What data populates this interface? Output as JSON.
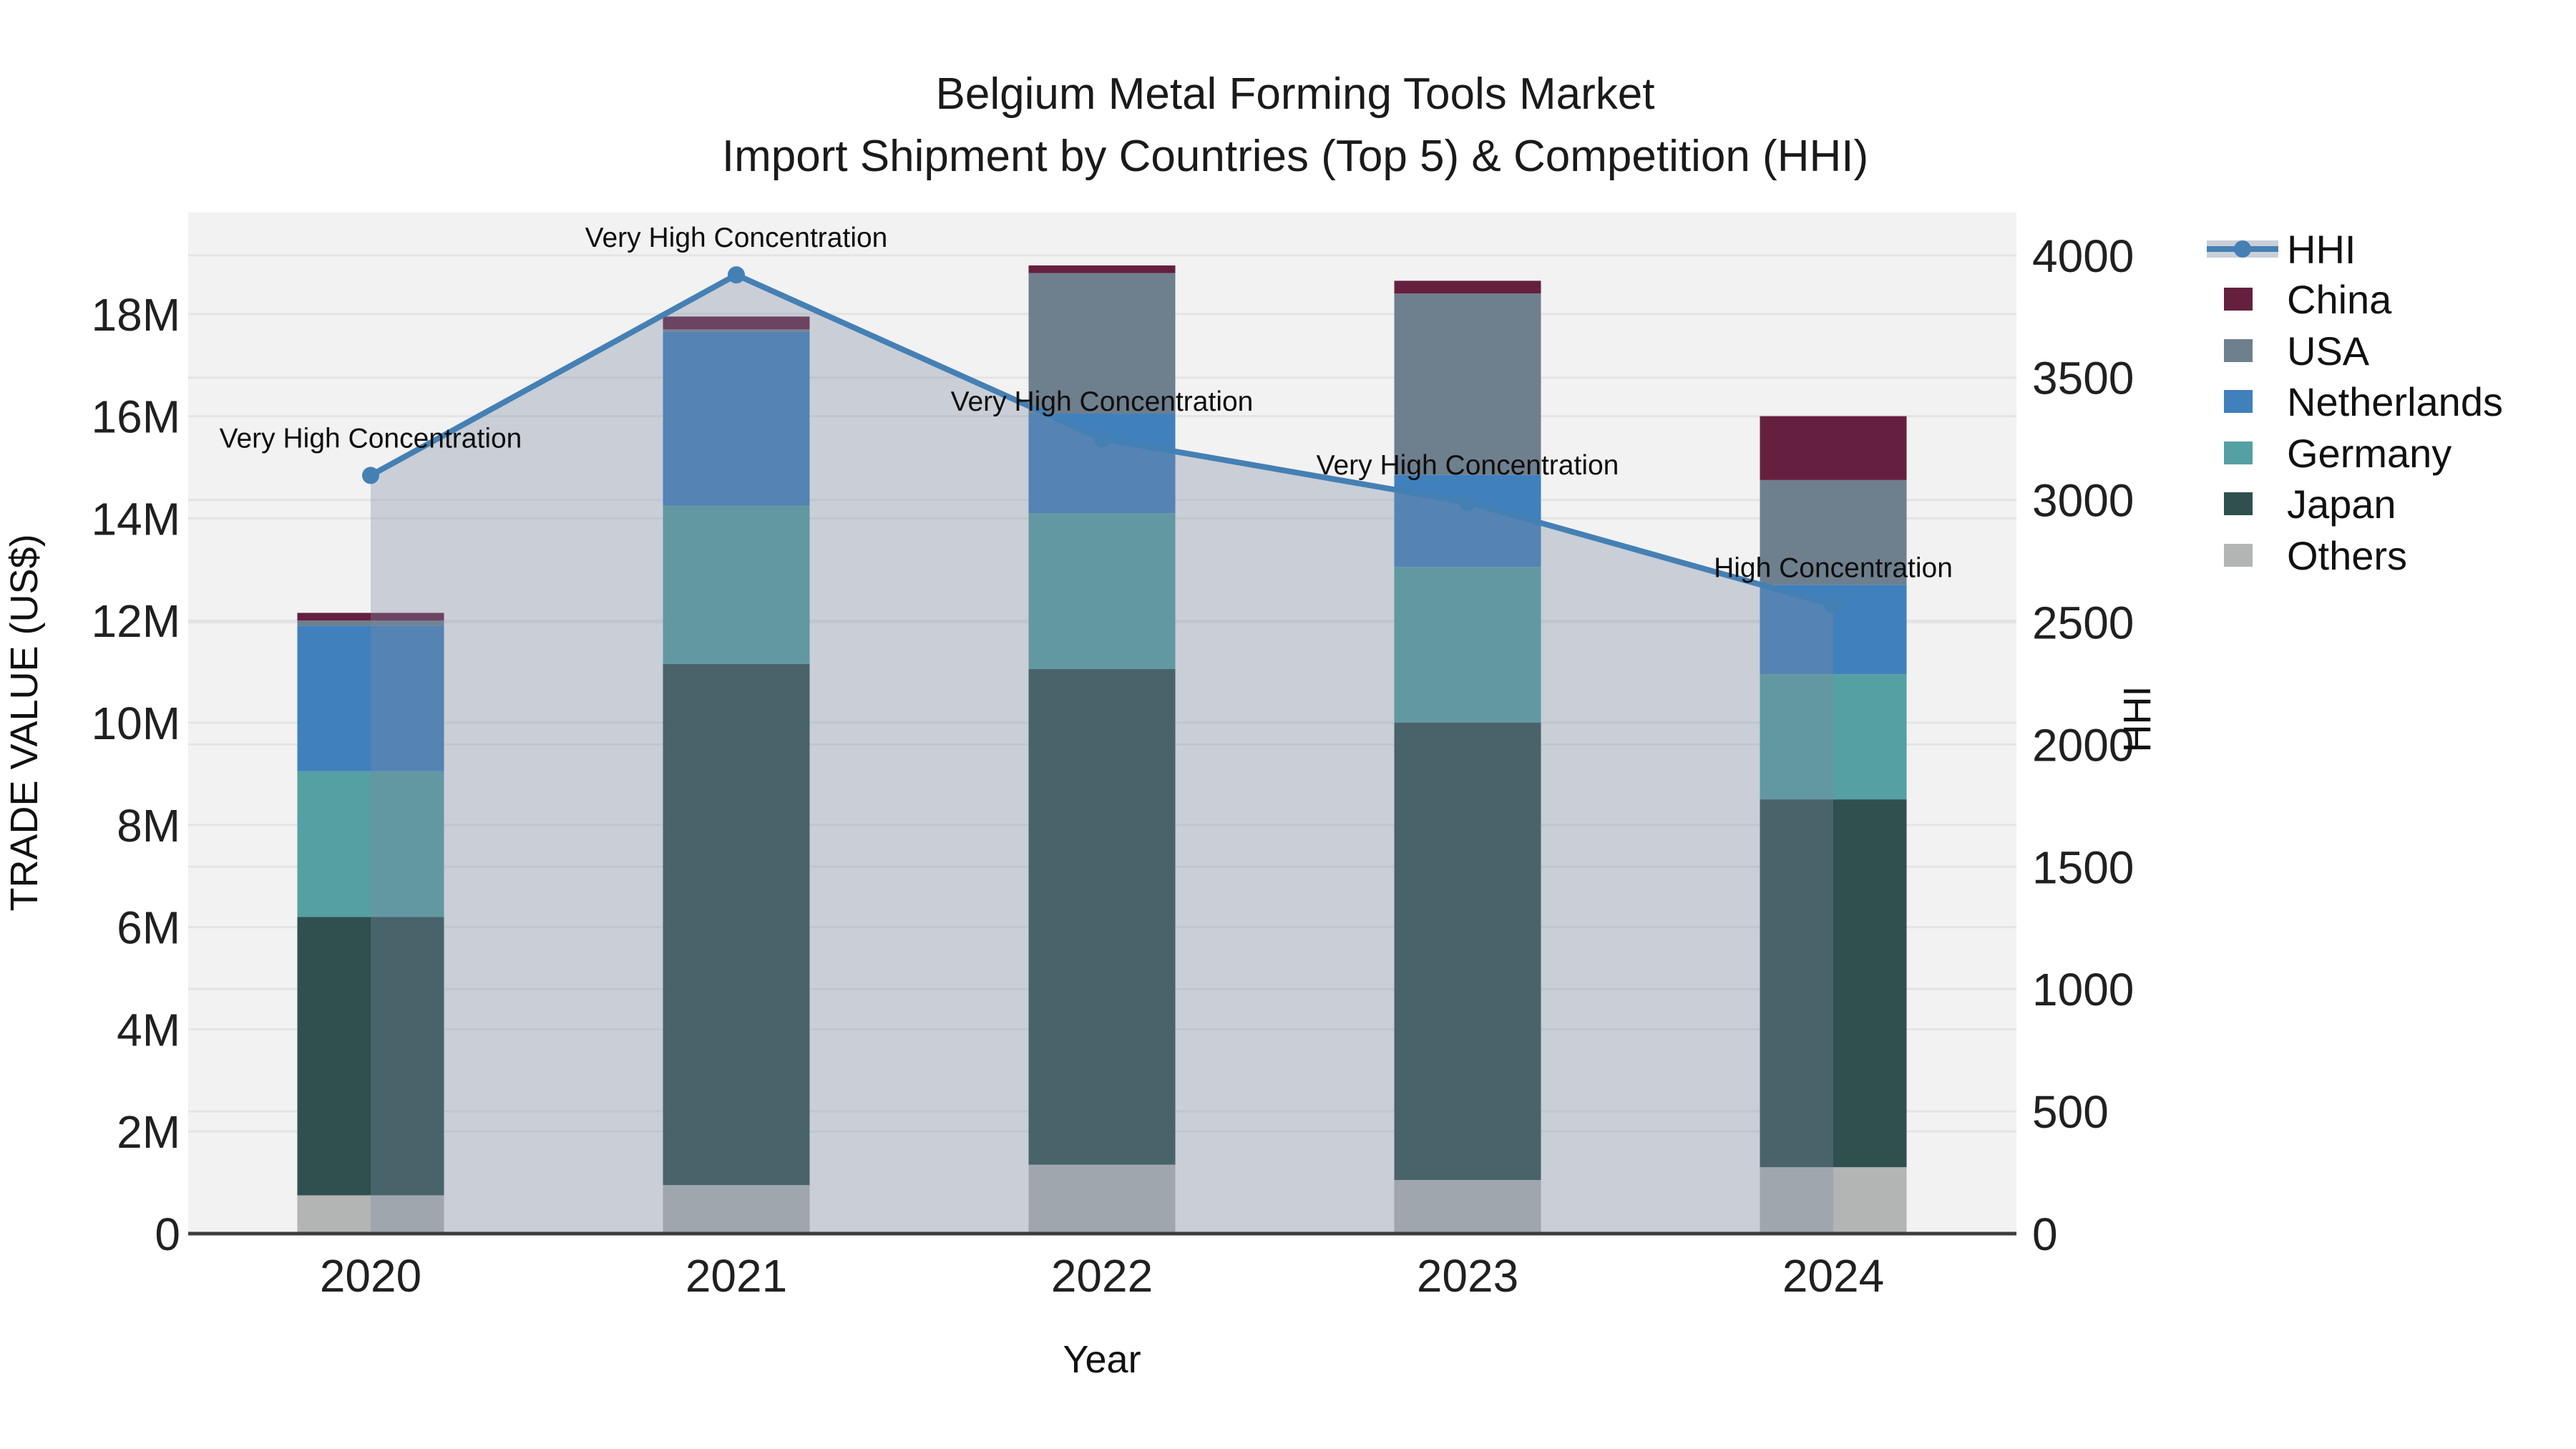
{
  "title": {
    "line1": "Belgium Metal Forming Tools Market",
    "line2": "Import Shipment by Countries (Top 5) & Competition (HHI)"
  },
  "axes": {
    "left": {
      "label": "TRADE VALUE (US$)",
      "ticks": [
        "0",
        "2M",
        "4M",
        "6M",
        "8M",
        "10M",
        "12M",
        "14M",
        "16M",
        "18M"
      ],
      "tick_values_millions": [
        0,
        2,
        4,
        6,
        8,
        10,
        12,
        14,
        16,
        18
      ]
    },
    "right": {
      "label": "HHI",
      "ticks": [
        "0",
        "500",
        "1000",
        "1500",
        "2000",
        "2500",
        "3000",
        "3500",
        "4000"
      ],
      "tick_values": [
        0,
        500,
        1000,
        1500,
        2000,
        2500,
        3000,
        3500,
        4000
      ]
    },
    "bottom": {
      "label": "Year"
    }
  },
  "chart_data": {
    "type": "bar+line",
    "title": "Belgium Metal Forming Tools Market — Import Shipment by Countries (Top 5) & Competition (HHI)",
    "categories": [
      "2020",
      "2021",
      "2022",
      "2023",
      "2024"
    ],
    "stack_unit": "million US$",
    "series": [
      {
        "name": "China",
        "color": "#65203f",
        "values": [
          0.15,
          0.25,
          0.15,
          0.25,
          1.25
        ]
      },
      {
        "name": "USA",
        "color": "#6e7f8e",
        "values": [
          0.1,
          0.05,
          2.75,
          3.55,
          2.05
        ]
      },
      {
        "name": "Netherlands",
        "color": "#4080bd",
        "values": [
          2.85,
          3.4,
          1.95,
          1.8,
          1.75
        ]
      },
      {
        "name": "Germany",
        "color": "#55a0a2",
        "values": [
          2.85,
          3.1,
          3.05,
          3.05,
          2.45
        ]
      },
      {
        "name": "Japan",
        "color": "#2f504e",
        "values": [
          5.45,
          10.2,
          9.7,
          8.95,
          7.2
        ]
      },
      {
        "name": "Others",
        "color": "#b2b5b3",
        "values": [
          0.75,
          0.95,
          1.35,
          1.05,
          1.3
        ]
      }
    ],
    "bar_totals_millions": [
      12.15,
      17.95,
      18.95,
      18.65,
      16.0
    ],
    "line_series": {
      "name": "HHI",
      "axis": "right",
      "color": "#4580b4",
      "area_fill_color": "rgba(122,138,163,0.34)",
      "legend_band_color": "#c9cfd7",
      "values": [
        3100,
        3920,
        3250,
        2990,
        2570
      ]
    },
    "annotations": [
      "Very High Concentration",
      "Very High Concentration",
      "Very High Concentration",
      "Very High Concentration",
      "High Concentration"
    ],
    "ylim_left_millions": [
      0,
      20
    ],
    "ylim_right": [
      0,
      4175
    ],
    "grid": true,
    "legend_position": "right",
    "plot_bg_color": "#f2f2f2",
    "grid_color": "#e4e4e4",
    "spine_color": "#3c3c3c"
  },
  "legend": {
    "items": [
      "HHI",
      "China",
      "USA",
      "Netherlands",
      "Germany",
      "Japan",
      "Others"
    ]
  }
}
